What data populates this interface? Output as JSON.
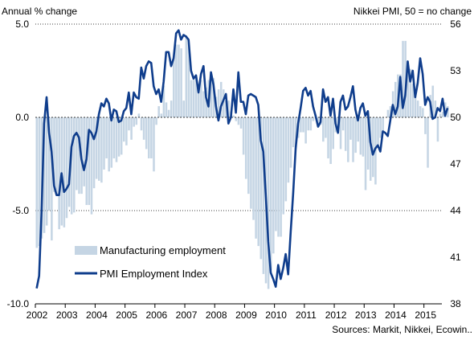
{
  "chart_data": {
    "type": "bar+line",
    "left_axis_label": "Annual % change",
    "right_axis_label": "Nikkei PMI, 50 = no change",
    "source": "Sources: Markit, Nikkei, Ecowin..",
    "left_ylim": [
      -10,
      5
    ],
    "left_ticks": [
      "5.0",
      "0.0",
      "-5.0",
      "-10.0"
    ],
    "left_tick_values": [
      5,
      0,
      -5,
      -10
    ],
    "right_ylim": [
      38,
      56
    ],
    "right_ticks": [
      "56",
      "53",
      "50",
      "47",
      "44",
      "41",
      "38"
    ],
    "right_tick_values": [
      56,
      53,
      50,
      47,
      44,
      41,
      38
    ],
    "x_start": 2002,
    "x_end": 2015.6,
    "years": [
      "2002",
      "2003",
      "2004",
      "2005",
      "2006",
      "2007",
      "2008",
      "2009",
      "2010",
      "2011",
      "2012",
      "2013",
      "2014",
      "2015"
    ],
    "grid": "dotted horizontal at left-axis ticks",
    "legend_position": "bottom-left inside plot",
    "series": [
      {
        "name": "Manufacturing employment",
        "kind": "bar",
        "axis": "left",
        "color": "#c5d5e4",
        "x_start": 2002.0,
        "step": 0.0833333,
        "values": [
          -7.0,
          -6.9,
          -6.5,
          -6.2,
          -5.8,
          -5.0,
          -6.6,
          -4.0,
          -4.2,
          -6.0,
          -5.8,
          -5.9,
          -5.4,
          -4.8,
          -5.2,
          -5.1,
          -3.9,
          -4.1,
          -4.1,
          -3.7,
          -4.7,
          -4.7,
          -5.2,
          -3.8,
          -3.3,
          -3.4,
          -3.5,
          -2.8,
          -2.2,
          -2.9,
          -2.7,
          -2.2,
          -2.4,
          -2.1,
          -2.0,
          -1.3,
          -1.5,
          -0.7,
          -1.2,
          -0.5,
          -0.4,
          0.2,
          -0.7,
          -1.2,
          -1.7,
          -2.2,
          -2.2,
          -2.9,
          -0.4,
          0.6,
          0.2,
          1.7,
          0.8,
          0.4,
          0.9,
          3.3,
          3.9,
          3.9,
          3.7,
          0.9,
          4.4,
          4.0,
          2.0,
          2.2,
          2.2,
          1.8,
          2.0,
          1.4,
          1.6,
          2.0,
          2.1,
          2.1,
          1.1,
          1.5,
          1.9,
          1.5,
          0.9,
          0.9,
          0.3,
          0.1,
          -0.2,
          -0.4,
          -0.6,
          -2.0,
          -3.3,
          -4.1,
          -4.9,
          -5.5,
          -6.5,
          -6.9,
          -7.6,
          -8.4,
          -8.9,
          -9.2,
          -8.2,
          -7.3,
          -6.1,
          -6.4,
          -6.4,
          -5.2,
          -4.5,
          -3.5,
          -2.7,
          -1.6,
          -1.7,
          -1.1,
          -0.8,
          -0.8,
          -1.4,
          -0.7,
          -0.7,
          -0.2,
          0.1,
          -0.5,
          -0.4,
          -1.3,
          -1.1,
          -2.2,
          -2.5,
          -1.7,
          -0.8,
          -0.6,
          -1.7,
          -0.7,
          -1.8,
          -2.4,
          -1.2,
          -2.4,
          -1.9,
          -1.3,
          -2.0,
          -2.1,
          -3.9,
          -2.8,
          -3.4,
          -3.2,
          -3.6,
          -1.5,
          -1.1,
          -0.7,
          0.0,
          0.4,
          0.6,
          1.4,
          1.9,
          2.3,
          2.3,
          4.1,
          4.1,
          2.9,
          2.6,
          1.8,
          1.3,
          0.9,
          0.6,
          0.5,
          -0.9,
          -2.7,
          1.2,
          1.7,
          0.9,
          -1.3,
          0.2,
          0.3,
          0.8,
          0.6
        ]
      },
      {
        "name": "PMI Employment Index",
        "kind": "line",
        "axis": "right",
        "color": "#0f3d8c",
        "x_start": 2002.0,
        "step": 0.0833333,
        "values": [
          39.0,
          39.8,
          44.0,
          49.6,
          51.3,
          49.0,
          47.8,
          45.6,
          45.0,
          45.0,
          46.4,
          45.2,
          45.4,
          45.7,
          48.1,
          48.8,
          49.0,
          48.7,
          47.3,
          46.6,
          47.3,
          49.2,
          49.0,
          48.6,
          49.1,
          50.2,
          50.9,
          50.7,
          51.2,
          50.9,
          49.8,
          50.5,
          50.4,
          49.7,
          49.8,
          50.4,
          50.6,
          51.6,
          50.2,
          51.6,
          51.3,
          51.2,
          53.2,
          52.5,
          53.3,
          53.6,
          53.5,
          52.0,
          51.5,
          51.8,
          51.0,
          52.3,
          54.2,
          54.2,
          53.3,
          53.8,
          55.4,
          55.6,
          55.0,
          55.3,
          55.2,
          55.0,
          53.0,
          52.5,
          52.7,
          51.6,
          52.8,
          53.3,
          51.3,
          50.7,
          52.9,
          52.1,
          50.7,
          49.8,
          50.7,
          51.1,
          51.5,
          49.6,
          50.0,
          51.8,
          50.3,
          52.9,
          51.0,
          51.0,
          50.2,
          51.4,
          51.5,
          51.4,
          51.3,
          50.8,
          48.5,
          47.8,
          45.0,
          42.0,
          40.0,
          39.6,
          39.1,
          40.5,
          39.6,
          40.3,
          41.2,
          39.9,
          42.6,
          45.1,
          48.0,
          49.6,
          50.6,
          51.7,
          51.9,
          51.4,
          51.7,
          50.7,
          50.1,
          49.4,
          49.7,
          51.8,
          51.0,
          51.3,
          50.1,
          51.2,
          49.6,
          49.0,
          51.0,
          51.4,
          50.5,
          50.7,
          51.3,
          52.0,
          50.5,
          49.8,
          50.6,
          50.9,
          50.1,
          50.4,
          48.4,
          47.6,
          48.0,
          48.2,
          47.8,
          49.1,
          49.0,
          48.8,
          49.8,
          50.8,
          50.2,
          50.7,
          52.6,
          50.6,
          51.4,
          53.6,
          52.3,
          53.0,
          51.3,
          52.2,
          53.8,
          52.8,
          50.8,
          51.3,
          51.0,
          49.9,
          50.0,
          50.6,
          50.4,
          51.2,
          50.1,
          50.6
        ]
      }
    ]
  }
}
